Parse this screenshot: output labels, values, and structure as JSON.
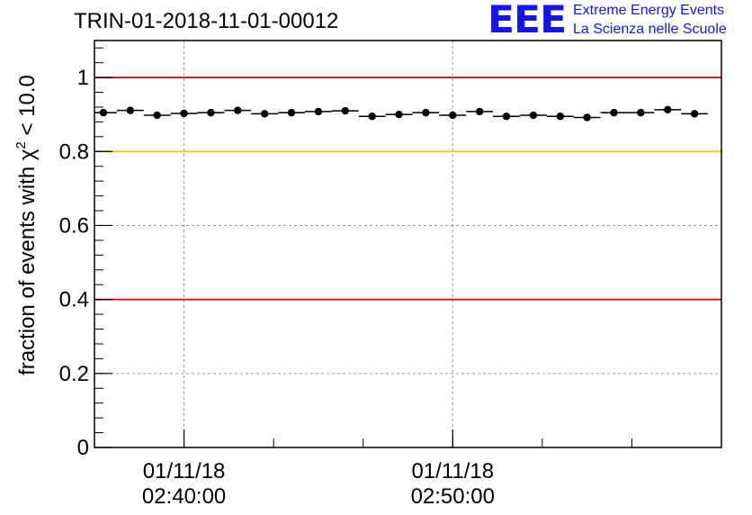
{
  "header": {
    "title": "TRIN-01-2018-11-01-00012",
    "logo_mark": "EEE",
    "logo_line1": "Extreme Energy Events",
    "logo_line2": "La Scienza nelle Scuole"
  },
  "colors": {
    "limit_red": "#e00000",
    "limit_yellow": "#ffc000",
    "marker": "#000000",
    "grid": "#999999",
    "logo": "#1515ee"
  },
  "chart_data": {
    "type": "scatter",
    "title": "TRIN-01-2018-11-01-00012",
    "ylabel_prefix": "fraction of events with ",
    "ylabel_symbol": "χ",
    "ylabel_sup": "2",
    "ylabel_suffix": " < 10.0",
    "ylim": [
      0,
      1.1
    ],
    "y_ticks": [
      {
        "value": 0,
        "label": "0"
      },
      {
        "value": 0.2,
        "label": "0.2"
      },
      {
        "value": 0.4,
        "label": "0.4"
      },
      {
        "value": 0.6,
        "label": "0.6"
      },
      {
        "value": 0.8,
        "label": "0.8"
      },
      {
        "value": 1,
        "label": "1"
      }
    ],
    "xlim": [
      "02:36:40",
      "03:00:00"
    ],
    "x_ticks": [
      {
        "value": "02:40:00",
        "label1": "01/11/18",
        "label2": "02:40:00"
      },
      {
        "value": "02:50:00",
        "label1": "01/11/18",
        "label2": "02:50:00"
      }
    ],
    "grid": true,
    "reference_lines": [
      {
        "y": 1.0,
        "color": "#e00000"
      },
      {
        "y": 0.8,
        "color": "#ffc000"
      },
      {
        "y": 0.4,
        "color": "#e00000"
      }
    ],
    "points": [
      {
        "t": "02:37:00",
        "y": 0.905
      },
      {
        "t": "02:38:00",
        "y": 0.911
      },
      {
        "t": "02:39:00",
        "y": 0.898
      },
      {
        "t": "02:40:00",
        "y": 0.903
      },
      {
        "t": "02:41:00",
        "y": 0.905
      },
      {
        "t": "02:42:00",
        "y": 0.911
      },
      {
        "t": "02:43:00",
        "y": 0.902
      },
      {
        "t": "02:44:00",
        "y": 0.905
      },
      {
        "t": "02:45:00",
        "y": 0.908
      },
      {
        "t": "02:46:00",
        "y": 0.91
      },
      {
        "t": "02:47:00",
        "y": 0.895
      },
      {
        "t": "02:48:00",
        "y": 0.9
      },
      {
        "t": "02:49:00",
        "y": 0.905
      },
      {
        "t": "02:50:00",
        "y": 0.898
      },
      {
        "t": "02:51:00",
        "y": 0.908
      },
      {
        "t": "02:52:00",
        "y": 0.895
      },
      {
        "t": "02:53:00",
        "y": 0.898
      },
      {
        "t": "02:54:00",
        "y": 0.895
      },
      {
        "t": "02:55:00",
        "y": 0.892
      },
      {
        "t": "02:56:00",
        "y": 0.905
      },
      {
        "t": "02:57:00",
        "y": 0.905
      },
      {
        "t": "02:58:00",
        "y": 0.913
      },
      {
        "t": "02:59:00",
        "y": 0.902
      }
    ]
  }
}
